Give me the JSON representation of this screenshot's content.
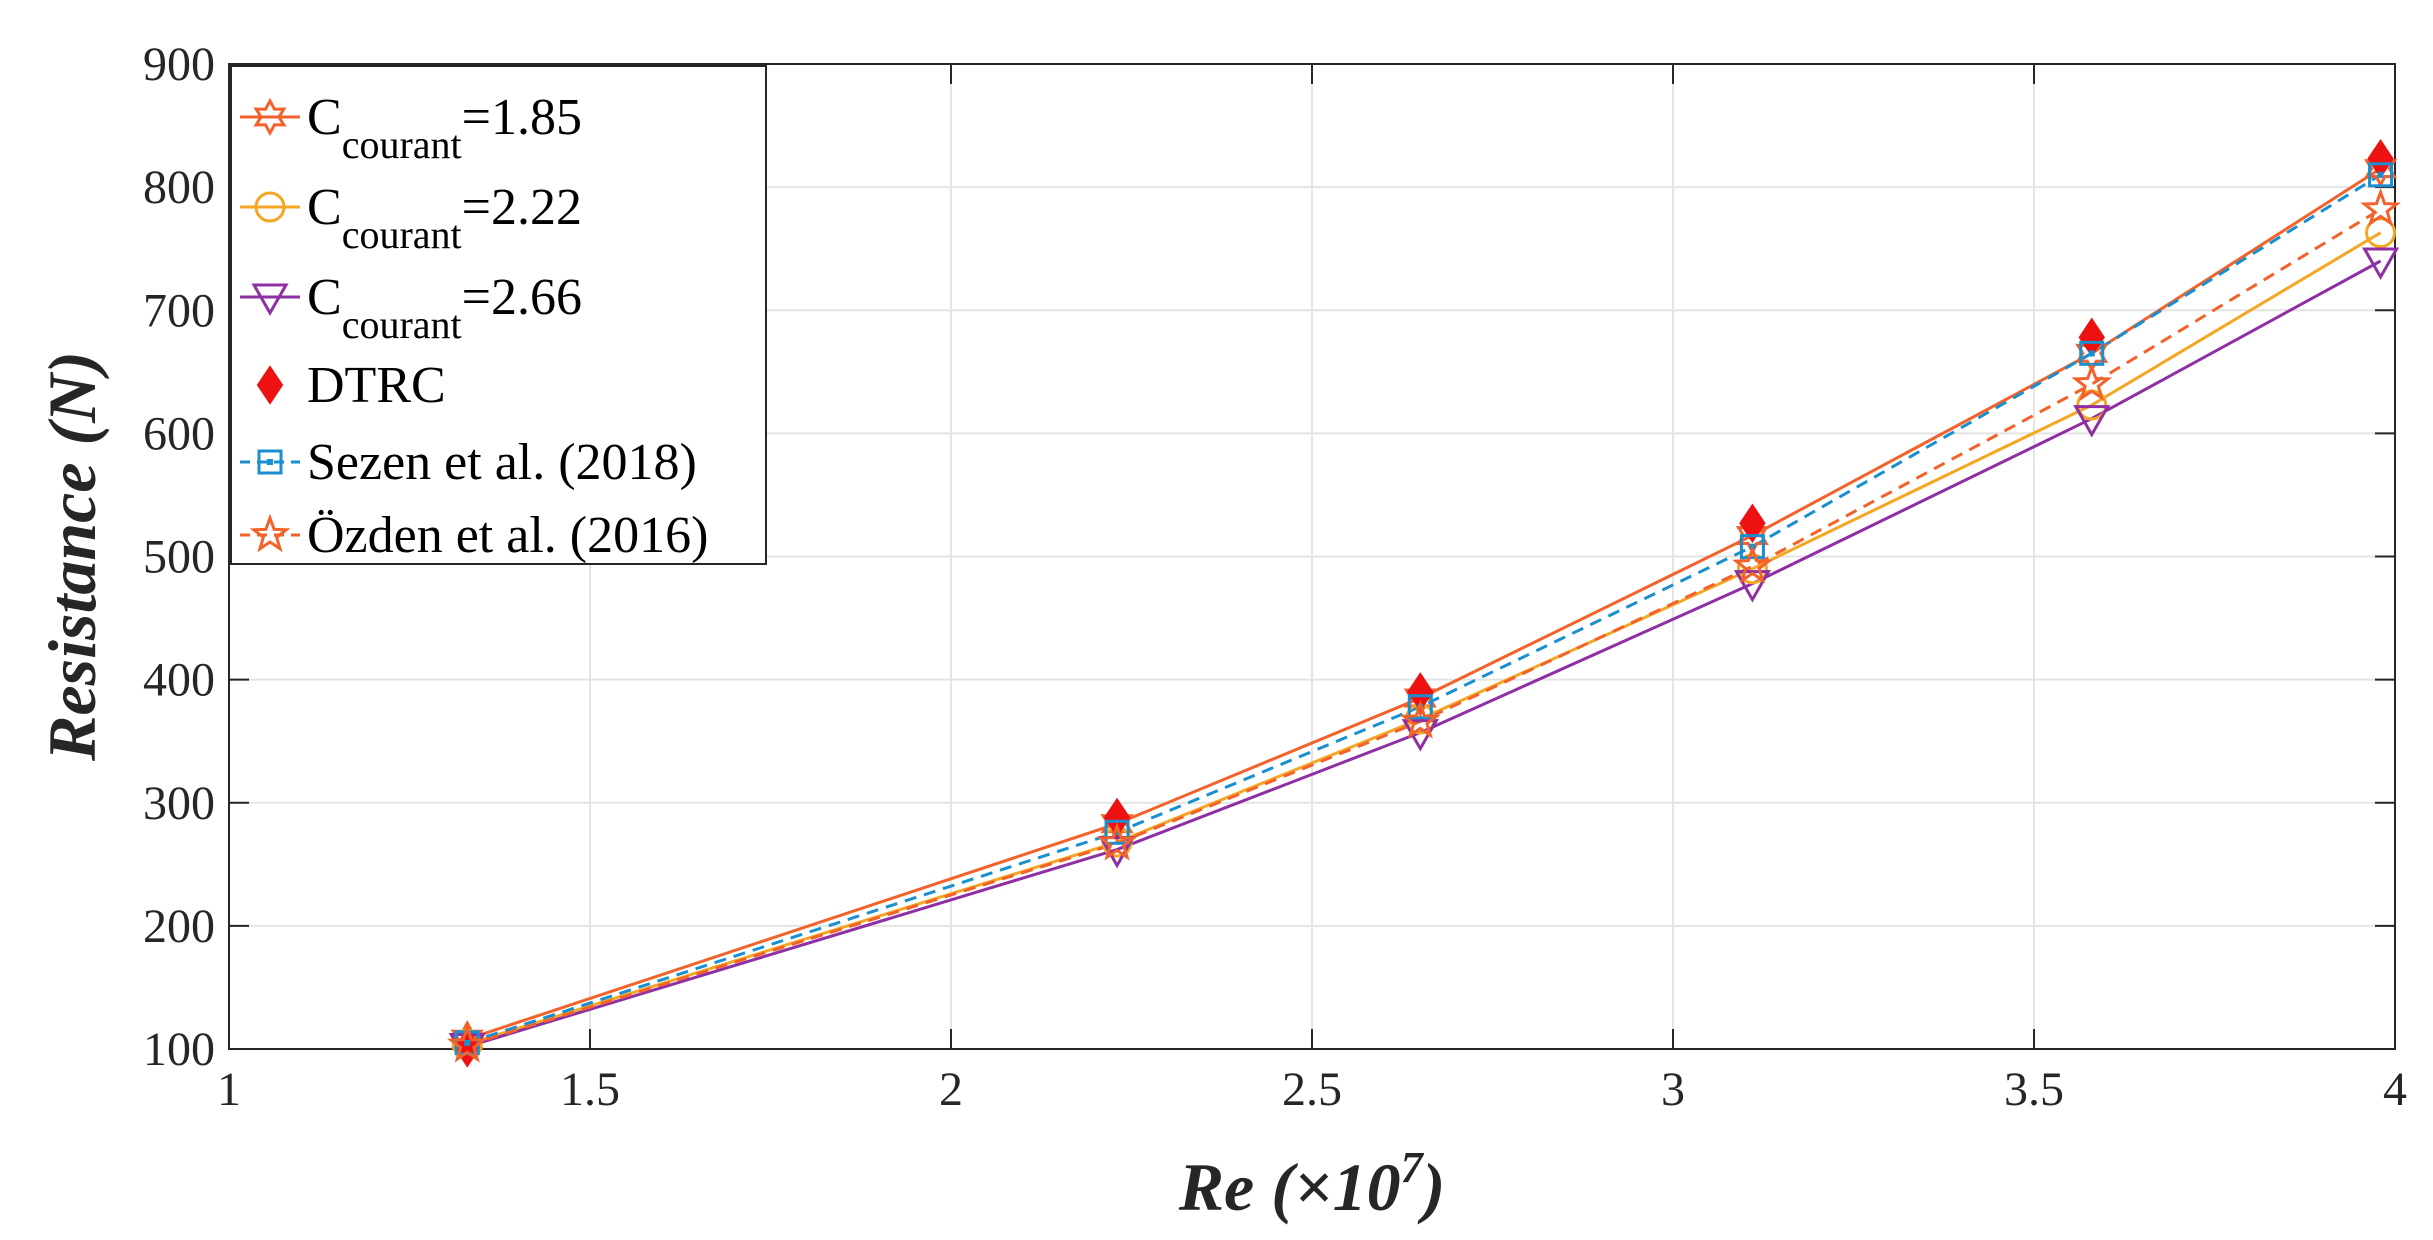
{
  "chart_data": {
    "type": "line",
    "xlabel": "Re (×10",
    "xlabel_exponent": "7",
    "xlabel_close": ")",
    "ylabel": "Resistance (N)",
    "xlim": [
      1,
      4
    ],
    "ylim": [
      100,
      900
    ],
    "xticks": [
      1,
      1.5,
      2,
      2.5,
      3,
      3.5,
      4
    ],
    "xtick_labels": [
      "1",
      "1.5",
      "2",
      "2.5",
      "3",
      "3.5",
      "4"
    ],
    "yticks": [
      100,
      200,
      300,
      400,
      500,
      600,
      700,
      800,
      900
    ],
    "ytick_labels": [
      "100",
      "200",
      "300",
      "400",
      "500",
      "600",
      "700",
      "800",
      "900"
    ],
    "grid": true,
    "legend_position": "top-left",
    "x": [
      1.33,
      2.23,
      2.65,
      3.11,
      3.58,
      3.98
    ],
    "series": [
      {
        "name": "Ccourant=1.85",
        "label_main": "C",
        "label_sub": "courant",
        "label_tail": "=1.85",
        "marker": "hexagram",
        "line": "solid",
        "color": "#f2622a",
        "values": [
          108,
          283,
          385,
          517,
          665,
          815
        ]
      },
      {
        "name": "Ccourant=2.22",
        "label_main": "C",
        "label_sub": "courant",
        "label_tail": "=2.22",
        "marker": "circle",
        "line": "solid",
        "color": "#f5a623",
        "values": [
          104,
          268,
          368,
          490,
          623,
          763
        ]
      },
      {
        "name": "Ccourant=2.66",
        "label_main": "C",
        "label_sub": "courant",
        "label_tail": "=2.66",
        "marker": "triangle-down",
        "line": "solid",
        "color": "#8e2fa3",
        "values": [
          102,
          262,
          357,
          478,
          612,
          740
        ]
      },
      {
        "name": "DTRC",
        "label_main": "DTRC",
        "label_sub": "",
        "label_tail": "",
        "marker": "diamond",
        "line": "none",
        "color": "#ee1111",
        "values": [
          101,
          288,
          390,
          527,
          678,
          823
        ]
      },
      {
        "name": "Sezen et al. (2018)",
        "label_main": "Sezen et al. (2018)",
        "label_sub": "",
        "label_tail": "",
        "marker": "square",
        "line": "dashed",
        "color": "#1a8fd0",
        "values": [
          105,
          276,
          378,
          508,
          665,
          810
        ]
      },
      {
        "name": "Özden et al. (2016)",
        "label_main": "Özden et al. (2016)",
        "label_sub": "",
        "label_tail": "",
        "marker": "star",
        "line": "dashed",
        "color": "#f2622a",
        "values": [
          103,
          267,
          366,
          492,
          640,
          782
        ]
      }
    ]
  }
}
